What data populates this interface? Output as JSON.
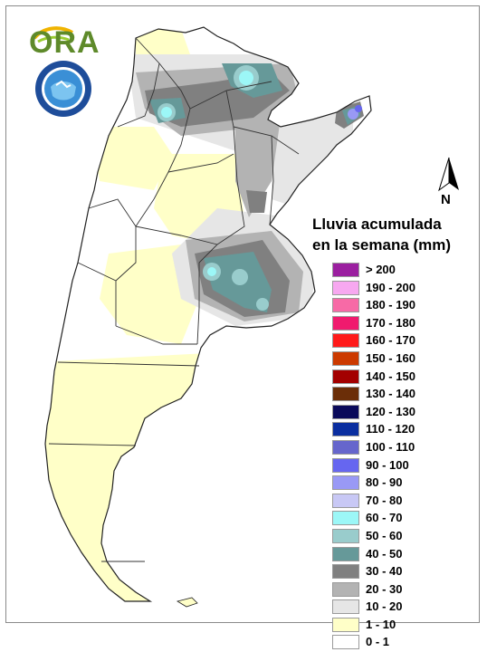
{
  "logo": {
    "text": "ORA"
  },
  "north_arrow": {
    "label": "N"
  },
  "legend": {
    "title_line1": "Lluvia acumulada",
    "title_line2": "en la semana (mm)",
    "items": [
      {
        "label": "> 200",
        "color": "#9b1fa0"
      },
      {
        "label": "190 - 200",
        "color": "#f7a8f0"
      },
      {
        "label": "180 - 190",
        "color": "#f76aa6"
      },
      {
        "label": "170 - 180",
        "color": "#f01a6e"
      },
      {
        "label": "160 - 170",
        "color": "#ff1a1a"
      },
      {
        "label": "150 - 160",
        "color": "#cc3a00"
      },
      {
        "label": "140 - 150",
        "color": "#a30000"
      },
      {
        "label": "130 - 140",
        "color": "#6b2e08"
      },
      {
        "label": "120 - 130",
        "color": "#0a0a5a"
      },
      {
        "label": "110 - 120",
        "color": "#0a2ea0"
      },
      {
        "label": "100 - 110",
        "color": "#6666cc"
      },
      {
        "label": "90 - 100",
        "color": "#6666f0"
      },
      {
        "label": "80 - 90",
        "color": "#9999f5"
      },
      {
        "label": "70 - 80",
        "color": "#c8c8f5"
      },
      {
        "label": "60 - 70",
        "color": "#9cf7f7"
      },
      {
        "label": "50 - 60",
        "color": "#99cccc"
      },
      {
        "label": "40 - 50",
        "color": "#669999"
      },
      {
        "label": "30 - 40",
        "color": "#808080"
      },
      {
        "label": "20 - 30",
        "color": "#b3b3b3"
      },
      {
        "label": "10 - 20",
        "color": "#e6e6e6"
      },
      {
        "label": "1 - 10",
        "color": "#ffffc8"
      },
      {
        "label": "0 - 1",
        "color": "#ffffff"
      }
    ]
  }
}
